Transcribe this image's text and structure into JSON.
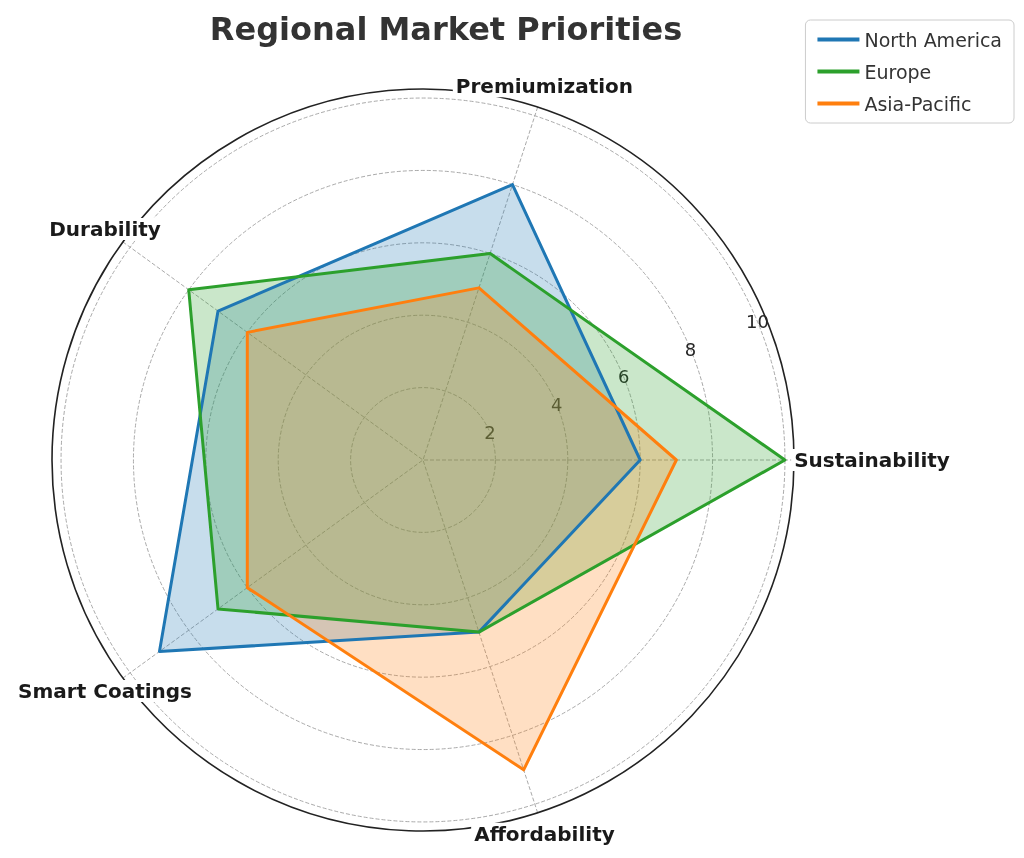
{
  "chart_data": {
    "type": "radar",
    "title": "Regional Market Priorities",
    "categories": [
      "Premiumization",
      "Sustainability",
      "Affordability",
      "Smart Coatings",
      "Durability"
    ],
    "series": [
      {
        "name": "North America",
        "color": "#1f77b4",
        "values": [
          8,
          6,
          5,
          9,
          7
        ]
      },
      {
        "name": "Europe",
        "color": "#2ca02c",
        "values": [
          6,
          10,
          5,
          7,
          8
        ]
      },
      {
        "name": "Asia-Pacific",
        "color": "#ff7f0e",
        "values": [
          5,
          7,
          9,
          6,
          6
        ]
      }
    ],
    "ylim": [
      0,
      10.25
    ],
    "yticks": [
      2,
      4,
      6,
      8,
      10
    ],
    "grid": true,
    "legend": "top right"
  }
}
